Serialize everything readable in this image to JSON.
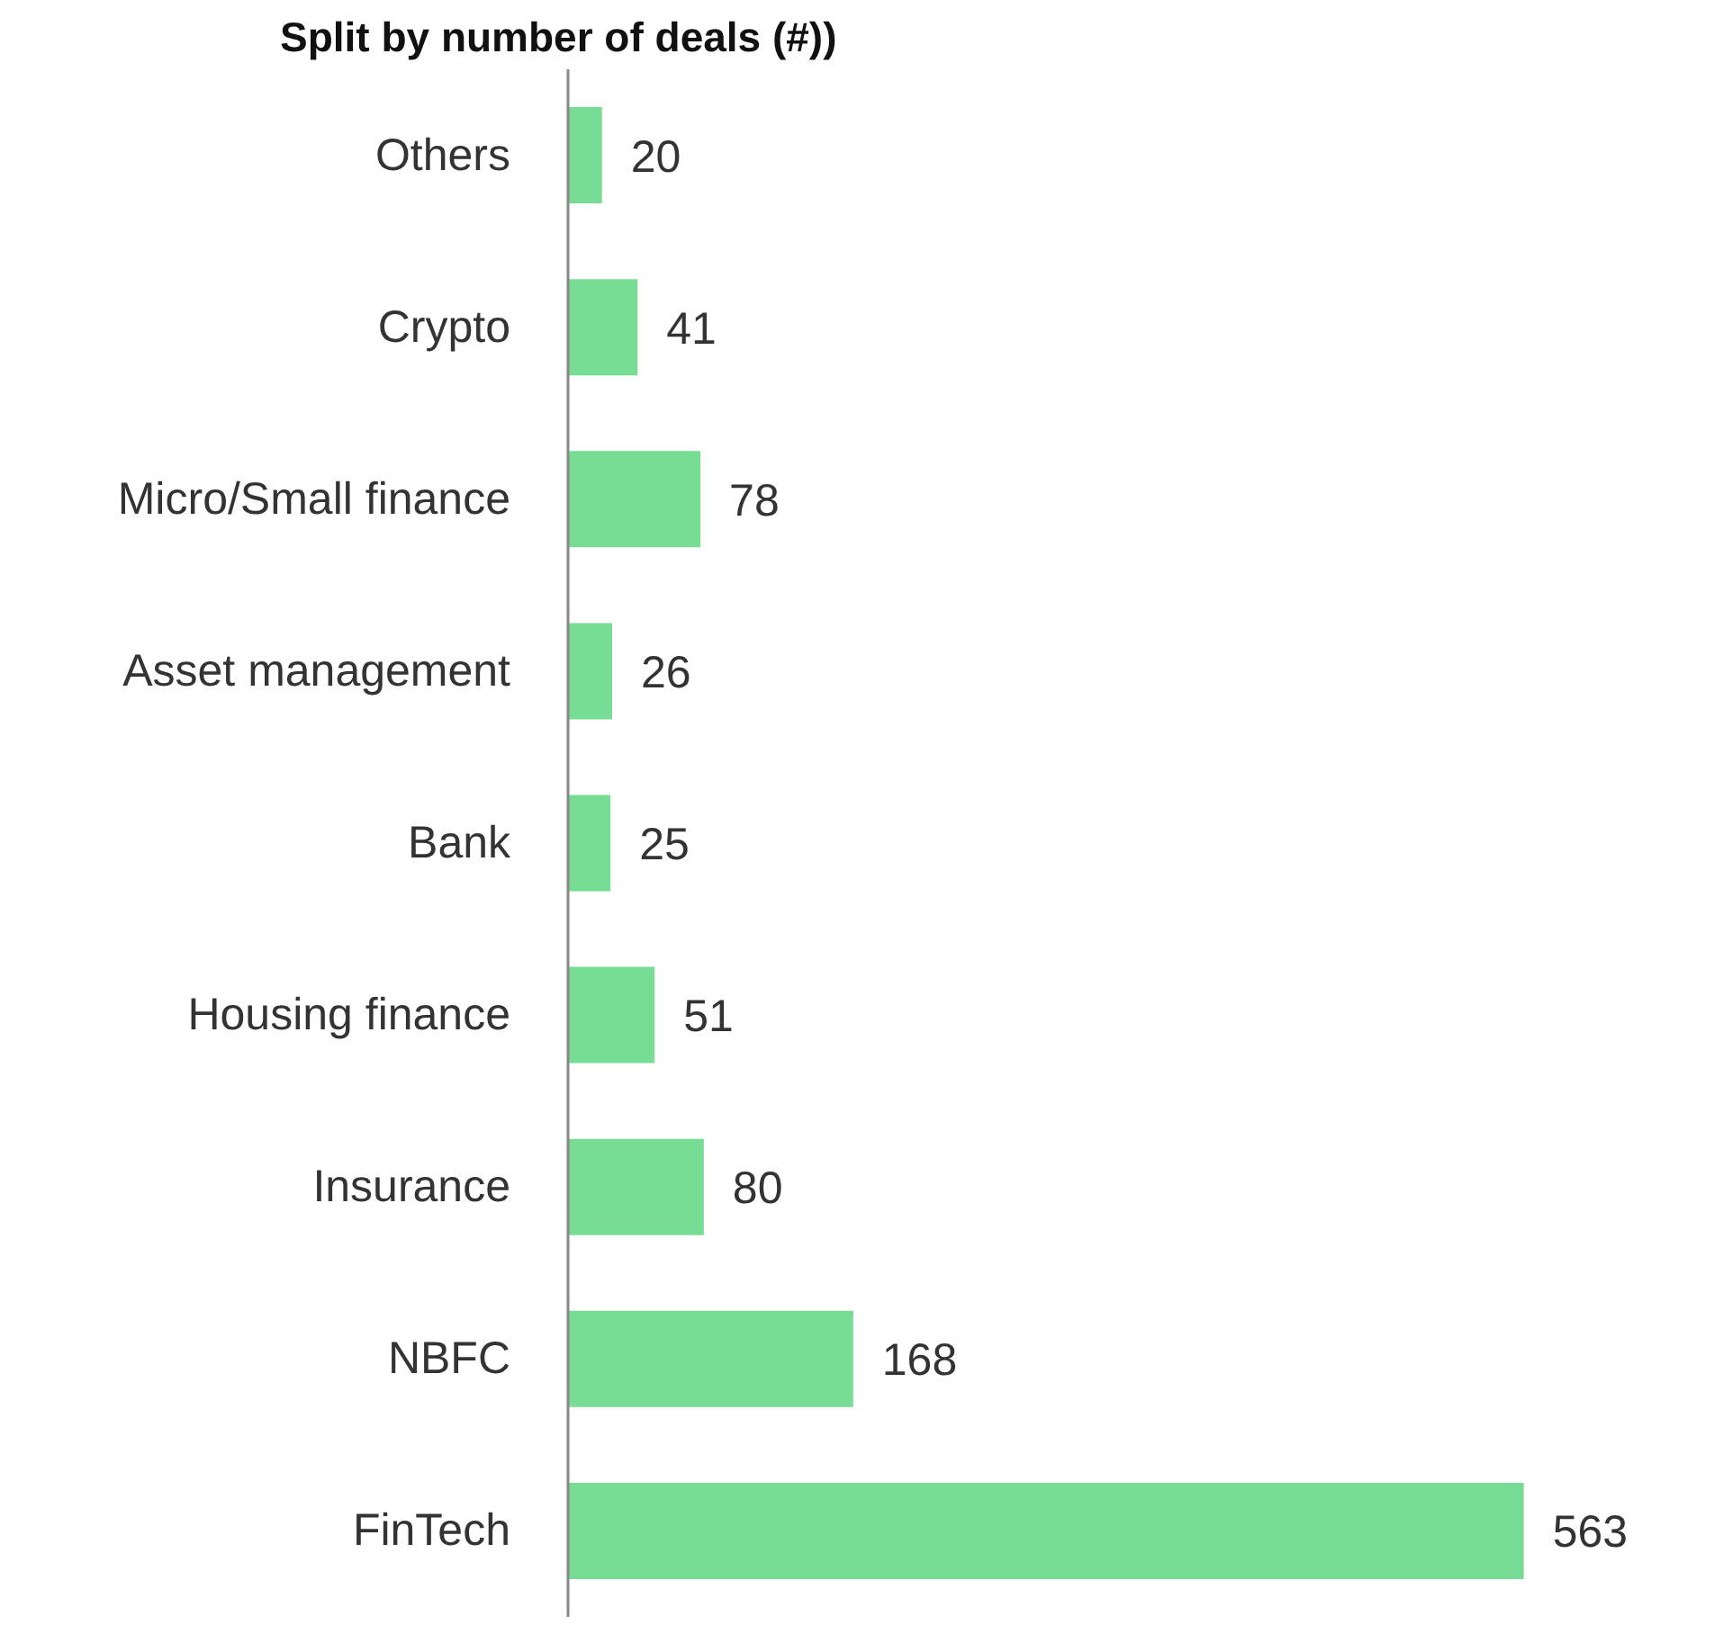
{
  "chart_data": {
    "type": "bar",
    "orientation": "horizontal",
    "title": "Split by number of deals (#))",
    "categories": [
      "Others",
      "Crypto",
      "Micro/Small finance",
      "Asset management",
      "Bank",
      "Housing finance",
      "Insurance",
      "NBFC",
      "FinTech"
    ],
    "values": [
      20,
      41,
      78,
      26,
      25,
      51,
      80,
      168,
      563
    ],
    "color": "#77dd95",
    "data_labels": true,
    "tick_labels": "y",
    "grid": false
  }
}
